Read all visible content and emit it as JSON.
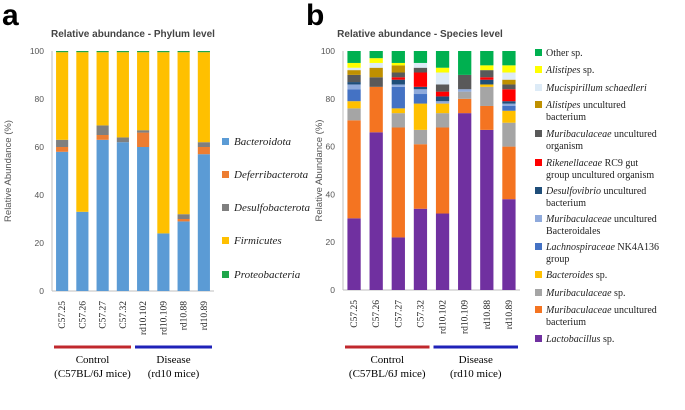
{
  "chart_data": [
    {
      "type": "bar",
      "panel_letter": "a",
      "title": "Relative abundance - Phylum level",
      "ylabel": "Relative Abundance (%)",
      "ylim": [
        0,
        100
      ],
      "yticks": [
        "0",
        "20",
        "40",
        "60",
        "80",
        "100"
      ],
      "categories": [
        "C57.25",
        "C57.26",
        "C57.27",
        "C57.32",
        "rd10.102",
        "rd10.109",
        "rd10.88",
        "rd10.89"
      ],
      "stacked": true,
      "grid": false,
      "legend_position": "right",
      "series": [
        {
          "name": "Bacteroidota",
          "color": "#5B9BD5",
          "values": [
            58,
            33,
            63,
            62,
            60,
            24,
            29,
            57
          ]
        },
        {
          "name": "Deferribacterota",
          "color": "#ED7D31",
          "values": [
            2,
            0,
            2,
            0,
            6,
            0,
            1,
            3
          ]
        },
        {
          "name": "Desulfobacterota",
          "color": "#7F7F7F",
          "values": [
            3,
            0,
            4,
            2,
            1,
            0,
            2,
            2
          ]
        },
        {
          "name": "Firmicutes",
          "color": "#FFC000",
          "values": [
            36.5,
            66.5,
            30.5,
            35.5,
            32.5,
            75.5,
            67.5,
            37.5
          ]
        },
        {
          "name": "Proteobacteria",
          "color": "#1EA64A",
          "values": [
            0.5,
            0.5,
            0.5,
            0.5,
            0.5,
            0.5,
            0.5,
            0.5
          ]
        }
      ],
      "groups": [
        {
          "label": "Control",
          "sublabel": "(C57BL/6J mice)",
          "color": "#C0282D",
          "from": 0,
          "to": 3
        },
        {
          "label": "Disease",
          "sublabel": "(rd10 mice)",
          "color": "#1F22B8",
          "from": 4,
          "to": 7
        }
      ]
    },
    {
      "type": "bar",
      "panel_letter": "b",
      "title": "Relative abundance - Species level",
      "ylabel": "Relative Abundance (%)",
      "ylim": [
        0,
        100
      ],
      "yticks": [
        "0",
        "20",
        "40",
        "60",
        "80",
        "100"
      ],
      "categories": [
        "C57.25",
        "C57.26",
        "C57.27",
        "C57.32",
        "rd10.102",
        "rd10.109",
        "rd10.88",
        "rd10.89"
      ],
      "stacked": true,
      "grid": false,
      "legend_position": "right",
      "series": [
        {
          "name": "Lactobacillus sp.",
          "color": "#7030A0",
          "values": [
            30,
            66,
            22,
            34,
            32,
            74,
            67,
            38
          ]
        },
        {
          "name": "Muribaculaceae uncultured bacterium",
          "color": "#F47421",
          "values": [
            41,
            19,
            46,
            27,
            36,
            6,
            10,
            22
          ]
        },
        {
          "name": "Muribaculaceae sp.",
          "color": "#A5A5A5",
          "values": [
            5,
            0,
            6,
            6,
            6,
            3,
            8,
            10
          ]
        },
        {
          "name": "Bacteroides sp.",
          "color": "#FFC000",
          "values": [
            3,
            0,
            2,
            11,
            4,
            0,
            1,
            5
          ]
        },
        {
          "name": "Lachnospiraceae NK4A136 group",
          "color": "#4472C4",
          "values": [
            5,
            0,
            9,
            4,
            0,
            0,
            0,
            2
          ]
        },
        {
          "name": "Muribaculaceae uncultured Bacteroidales",
          "color": "#8FAADC",
          "values": [
            2,
            0,
            1,
            2,
            1,
            1,
            0,
            1
          ]
        },
        {
          "name": "Desulfovibrio uncultured bacterium",
          "color": "#1F4E79",
          "values": [
            1,
            0,
            2,
            1,
            2,
            0,
            2,
            1
          ]
        },
        {
          "name": "Rikenellaceae RC9 gut group uncultured organism",
          "color": "#FF0000",
          "values": [
            0,
            0,
            1,
            6,
            2,
            0,
            1,
            5
          ]
        },
        {
          "name": "Muribaculaceae uncultured organism",
          "color": "#595959",
          "values": [
            3,
            4,
            2,
            2,
            3,
            6,
            3,
            2
          ]
        },
        {
          "name": "Alistipes uncultured bacterium",
          "color": "#BF9000",
          "values": [
            2,
            4,
            3,
            0,
            0,
            0,
            0,
            2
          ]
        },
        {
          "name": "Mucispirillum schaedleri",
          "color": "#DDEBF7",
          "values": [
            1,
            2,
            0,
            2,
            5,
            0,
            0,
            3
          ]
        },
        {
          "name": "Alistipes sp.",
          "color": "#FFFF00",
          "values": [
            2,
            2,
            1,
            0,
            2,
            0,
            2,
            3
          ]
        },
        {
          "name": "Other sp.",
          "color": "#00B050",
          "values": [
            5,
            3,
            5,
            5,
            7,
            10,
            6,
            6
          ]
        }
      ],
      "groups": [
        {
          "label": "Control",
          "sublabel": "(C57BL/6J mice)",
          "color": "#C0282D",
          "from": 0,
          "to": 3
        },
        {
          "label": "Disease",
          "sublabel": "(rd10 mice)",
          "color": "#1F22B8",
          "from": 4,
          "to": 7
        }
      ]
    }
  ],
  "legend_b_lines": [
    [
      {
        "t": "Other sp.",
        "i": false
      }
    ],
    [
      {
        "t": "Alistipes",
        "i": true
      },
      {
        "t": " sp.",
        "i": false
      }
    ],
    [
      {
        "t": "Mucispirillum schaedleri",
        "i": true
      }
    ],
    [
      {
        "t": "Alistipes",
        "i": true
      },
      {
        "t": " uncultured",
        "i": false
      }
    ],
    [
      {
        "t": "bacterium",
        "i": false
      }
    ],
    [
      {
        "t": "Muribaculaceae",
        "i": true
      },
      {
        "t": " uncultured",
        "i": false
      }
    ],
    [
      {
        "t": "organism",
        "i": false
      }
    ],
    [
      {
        "t": "Rikenellaceae",
        "i": true
      },
      {
        "t": " RC9 gut",
        "i": false
      }
    ],
    [
      {
        "t": "group uncultured organism",
        "i": false
      }
    ],
    [
      {
        "t": "Desulfovibrio",
        "i": true
      },
      {
        "t": " uncultured",
        "i": false
      }
    ],
    [
      {
        "t": "bacterium",
        "i": false
      }
    ],
    [
      {
        "t": "Muribaculaceae",
        "i": true
      },
      {
        "t": " uncultured",
        "i": false
      }
    ],
    [
      {
        "t": "Bacteroidales",
        "i": false
      }
    ],
    [
      {
        "t": "Lachnospiraceae",
        "i": true
      },
      {
        "t": " NK4A136",
        "i": false
      }
    ],
    [
      {
        "t": "group",
        "i": false
      }
    ],
    [
      {
        "t": "Bacteroides",
        "i": true
      },
      {
        "t": " sp.",
        "i": false
      }
    ],
    [
      {
        "t": "Muribaculaceae",
        "i": true
      },
      {
        "t": " sp.",
        "i": false
      }
    ],
    [
      {
        "t": "Muribaculaceae",
        "i": true
      },
      {
        "t": " uncultured",
        "i": false
      }
    ],
    [
      {
        "t": "bacterium",
        "i": false
      }
    ],
    [
      {
        "t": "Lactobacillus",
        "i": true
      },
      {
        "t": " sp.",
        "i": false
      }
    ]
  ]
}
